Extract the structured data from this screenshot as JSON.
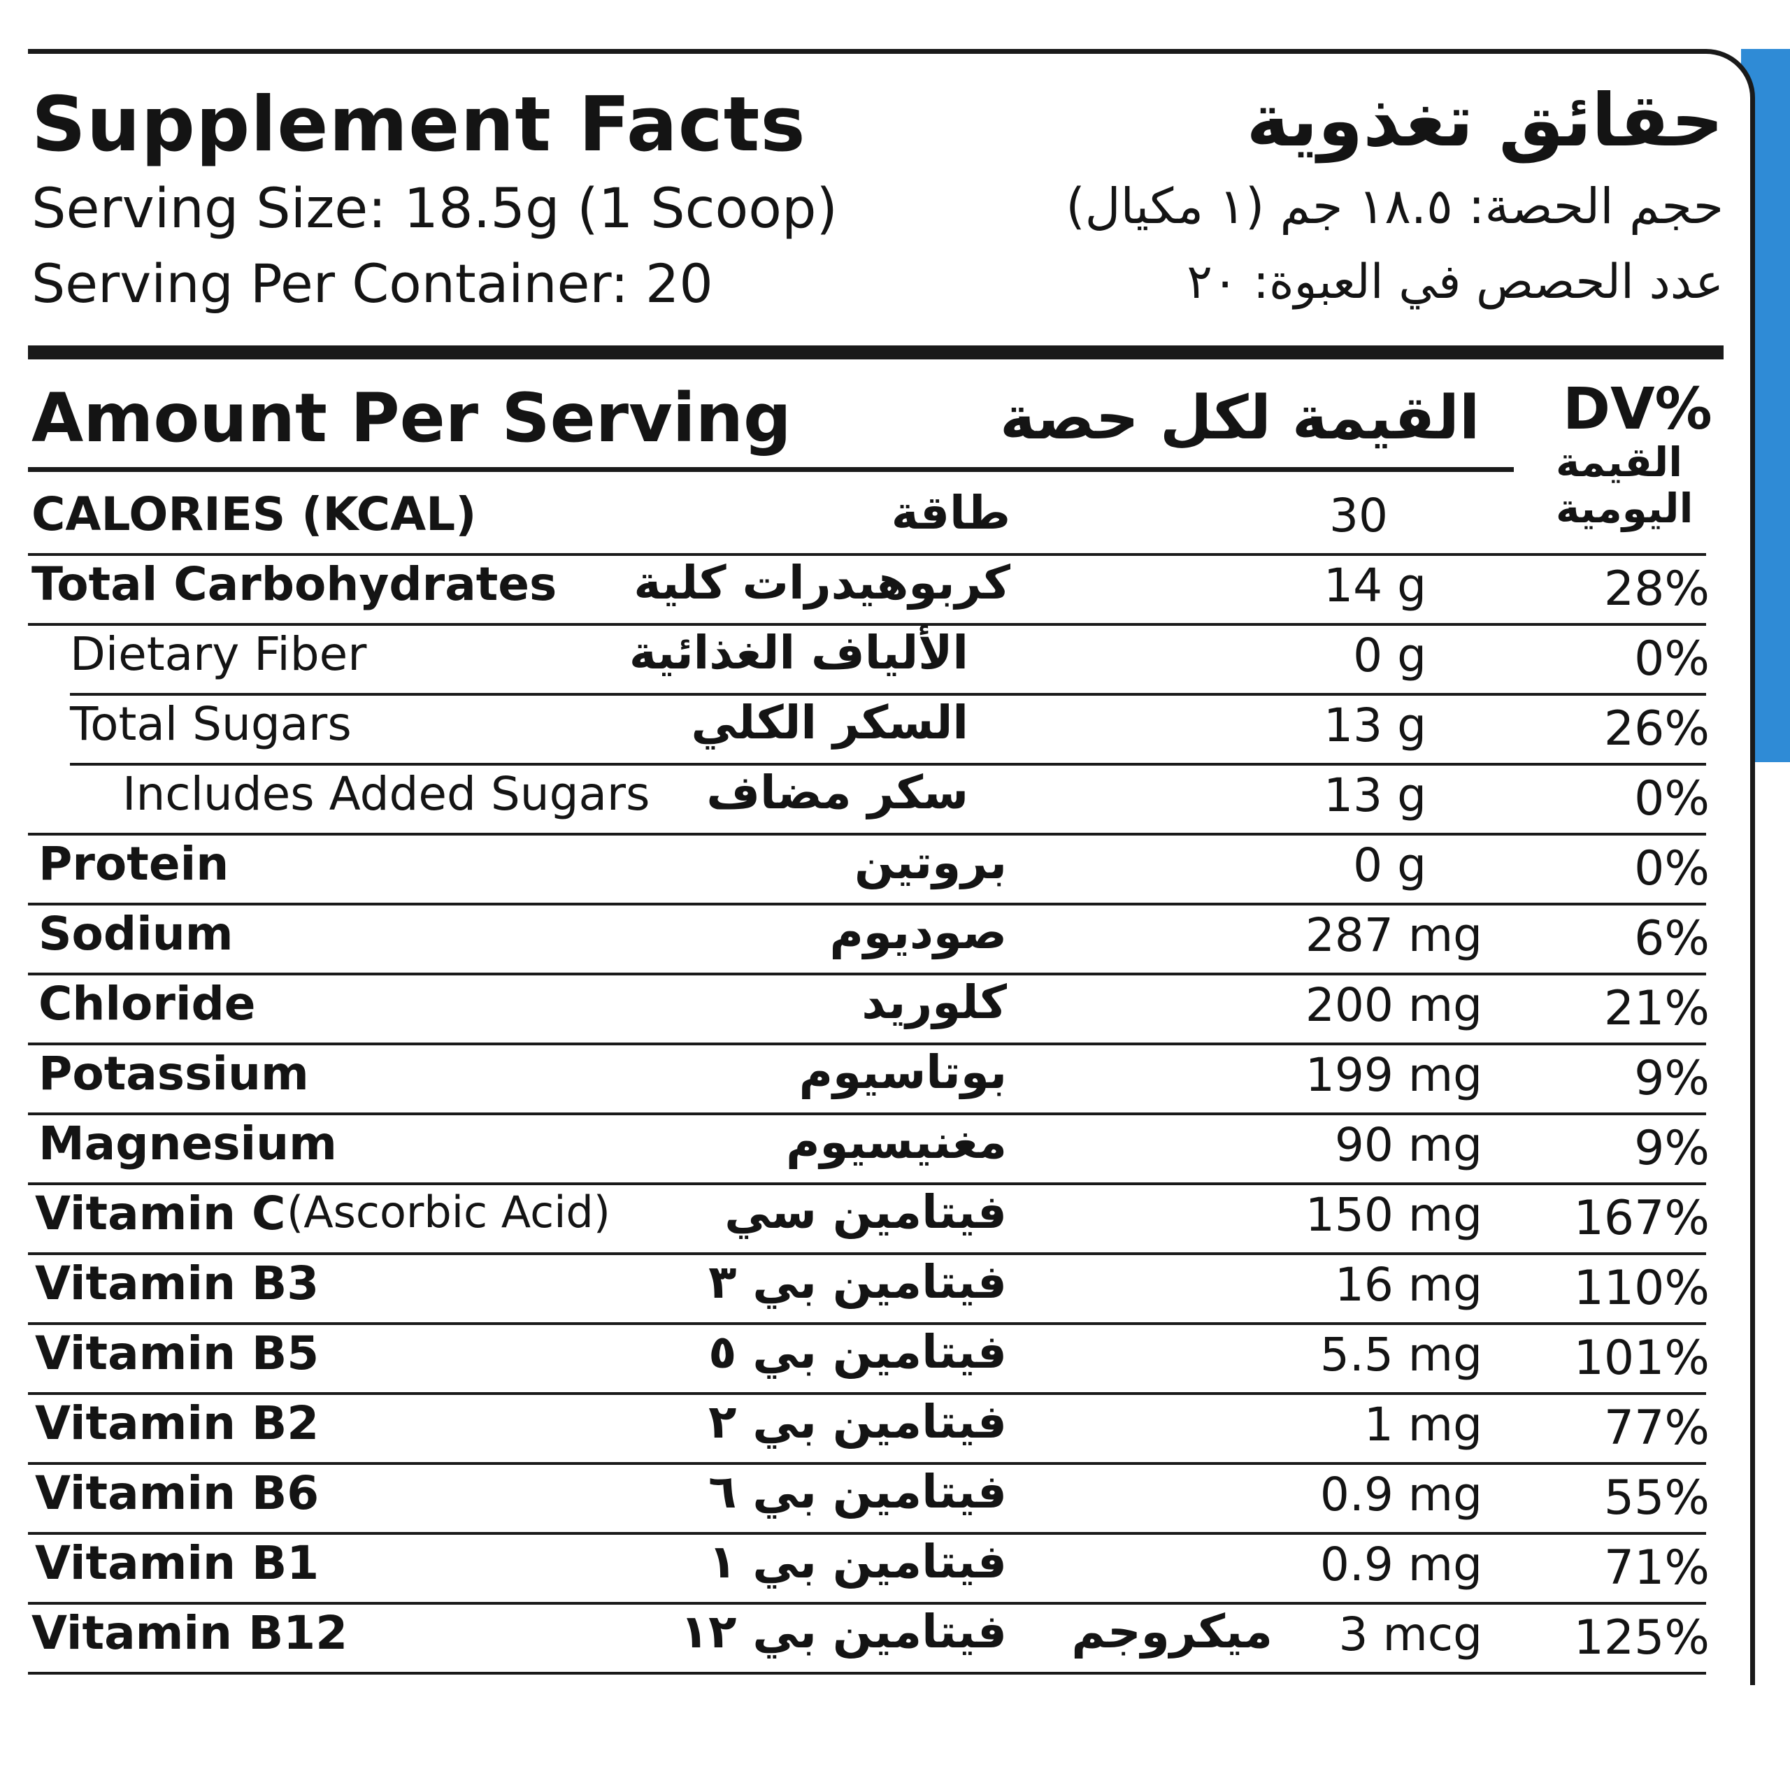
{
  "header": {
    "title_en": "Supplement Facts",
    "title_ar": "حقائق تغذوية",
    "serving_size_en": "Serving Size: 18.5g (1 Scoop)",
    "serving_size_ar": "حجم الحصة: ١٨.٥ جم (١ مكيال)",
    "servings_per_container_en": "Serving Per Container: 20",
    "servings_per_container_ar": "عدد الحصص في العبوة: ٢٠"
  },
  "table_header": {
    "amount_en": "Amount Per Serving",
    "amount_ar": "القيمة لكل حصة",
    "dv_label": "DV%",
    "dv_ar_line1": "القيمة",
    "dv_ar_line2": "اليومية"
  },
  "rows": [
    {
      "en": "CALORIES (KCAL)",
      "ar": "طاقة",
      "amount": "30",
      "dv": ""
    },
    {
      "en": "Total Carbohydrates",
      "ar": "كربوهيدرات كلية",
      "amount": "14 g",
      "dv": "28%"
    },
    {
      "en": "Dietary Fiber",
      "ar": "الألياف الغذائية",
      "amount": "0 g",
      "dv": "0%"
    },
    {
      "en": "Total Sugars",
      "ar": "السكر الكلي",
      "amount": "13 g",
      "dv": "26%"
    },
    {
      "en": "Includes Added Sugars",
      "ar": "سكر مضاف",
      "amount": "13 g",
      "dv": "0%"
    },
    {
      "en": "Protein",
      "ar": "بروتين",
      "amount": "0 g",
      "dv": "0%"
    },
    {
      "en": "Sodium",
      "ar": "صوديوم",
      "amount": "287 mg",
      "dv": "6%"
    },
    {
      "en": "Chloride",
      "ar": "كلوريد",
      "amount": "200 mg",
      "dv": "21%"
    },
    {
      "en": "Potassium",
      "ar": "بوتاسيوم",
      "amount": "199 mg",
      "dv": "9%"
    },
    {
      "en": "Magnesium",
      "ar": "مغنيسيوم",
      "amount": "90 mg",
      "dv": "9%"
    },
    {
      "en": "Vitamin C",
      "en_suffix": "(Ascorbic Acid)",
      "ar": "فيتامين سي",
      "amount": "150 mg",
      "dv": "167%"
    },
    {
      "en": "Vitamin B3",
      "ar": "فيتامين بي ٣",
      "amount": "16 mg",
      "dv": "110%"
    },
    {
      "en": "Vitamin B5",
      "ar": "فيتامين بي ٥",
      "amount": "5.5 mg",
      "dv": "101%"
    },
    {
      "en": "Vitamin B2",
      "ar": "فيتامين بي ٢",
      "amount": "1 mg",
      "dv": "77%"
    },
    {
      "en": "Vitamin B6",
      "ar": "فيتامين بي ٦",
      "amount": "0.9 mg",
      "dv": "55%"
    },
    {
      "en": "Vitamin B1",
      "ar": "فيتامين بي ١",
      "amount": "0.9 mg",
      "dv": "71%"
    },
    {
      "en": "Vitamin B12",
      "ar": "فيتامين بي ١٢",
      "ar_unit": "ميكروجم",
      "amount": "3 mcg",
      "dv": "125%"
    }
  ]
}
